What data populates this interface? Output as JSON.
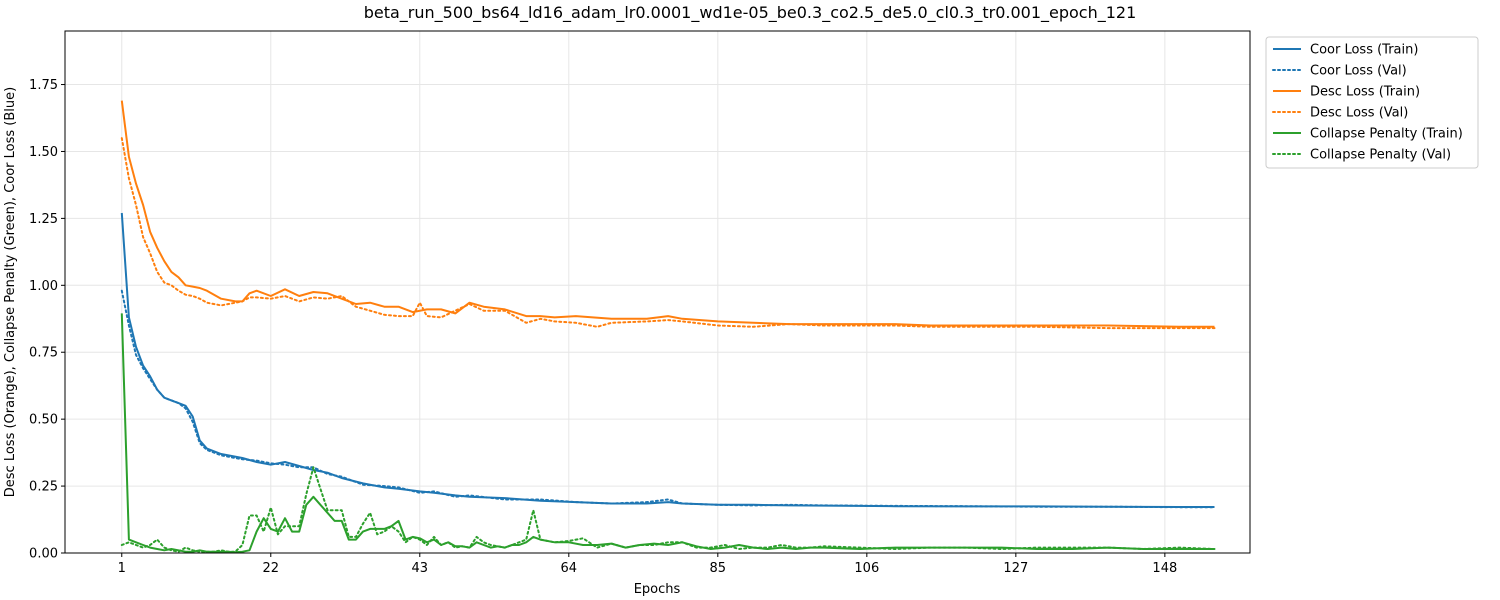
{
  "chart_data": {
    "type": "line",
    "title": "beta_run_500_bs64_ld16_adam_lr0.0001_wd1e-05_be0.3_co2.5_de5.0_cl0.3_tr0.001_epoch_121",
    "xlabel": "Epochs",
    "ylabel": "Desc Loss (Orange), Collapse Penalty (Green), Coor Loss (Blue)",
    "xlim": [
      -7,
      160
    ],
    "ylim": [
      0,
      1.95
    ],
    "x_ticks": [
      1,
      22,
      43,
      64,
      85,
      106,
      127,
      148
    ],
    "y_ticks": [
      0.0,
      0.25,
      0.5,
      0.75,
      1.0,
      1.25,
      1.5,
      1.75
    ],
    "y_tick_labels": [
      "0.00",
      "0.25",
      "0.50",
      "0.75",
      "1.00",
      "1.25",
      "1.50",
      "1.75"
    ],
    "grid": true,
    "legend_position": "outside-top-right",
    "series": [
      {
        "name": "Coor Loss (Train)",
        "color": "#1f77b4",
        "style": "solid",
        "x": [
          1,
          2,
          3,
          4,
          5,
          6,
          7,
          8,
          9,
          10,
          11,
          12,
          13,
          15,
          18,
          20,
          22,
          24,
          26,
          28,
          30,
          32,
          35,
          38,
          40,
          43,
          45,
          48,
          50,
          55,
          60,
          65,
          70,
          75,
          78,
          80,
          85,
          90,
          95,
          100,
          110,
          120,
          130,
          140,
          150,
          155
        ],
        "values": [
          1.27,
          0.88,
          0.77,
          0.7,
          0.66,
          0.61,
          0.58,
          0.57,
          0.56,
          0.55,
          0.51,
          0.42,
          0.39,
          0.37,
          0.355,
          0.34,
          0.33,
          0.34,
          0.325,
          0.31,
          0.3,
          0.28,
          0.26,
          0.245,
          0.24,
          0.23,
          0.225,
          0.215,
          0.21,
          0.205,
          0.195,
          0.19,
          0.185,
          0.185,
          0.19,
          0.185,
          0.18,
          0.18,
          0.178,
          0.177,
          0.175,
          0.174,
          0.174,
          0.173,
          0.172,
          0.172
        ]
      },
      {
        "name": "Coor Loss (Val)",
        "color": "#1f77b4",
        "style": "dotted",
        "x": [
          1,
          2,
          3,
          4,
          5,
          6,
          7,
          8,
          9,
          10,
          11,
          12,
          13,
          15,
          18,
          20,
          22,
          24,
          26,
          28,
          30,
          32,
          35,
          38,
          40,
          43,
          45,
          48,
          50,
          55,
          60,
          65,
          70,
          75,
          78,
          80,
          85,
          90,
          95,
          100,
          110,
          120,
          130,
          140,
          150,
          155
        ],
        "values": [
          0.98,
          0.85,
          0.74,
          0.69,
          0.65,
          0.61,
          0.58,
          0.57,
          0.56,
          0.54,
          0.49,
          0.41,
          0.385,
          0.365,
          0.35,
          0.345,
          0.335,
          0.33,
          0.32,
          0.32,
          0.295,
          0.285,
          0.255,
          0.25,
          0.245,
          0.225,
          0.23,
          0.21,
          0.215,
          0.2,
          0.2,
          0.19,
          0.185,
          0.19,
          0.2,
          0.185,
          0.18,
          0.178,
          0.18,
          0.178,
          0.176,
          0.175,
          0.173,
          0.173,
          0.171,
          0.171
        ]
      },
      {
        "name": "Desc Loss (Train)",
        "color": "#ff7f0e",
        "style": "solid",
        "x": [
          1,
          2,
          3,
          4,
          5,
          6,
          7,
          8,
          9,
          10,
          11,
          12,
          13,
          15,
          17,
          18,
          19,
          20,
          22,
          24,
          26,
          28,
          30,
          32,
          34,
          36,
          38,
          40,
          42,
          44,
          46,
          48,
          50,
          52,
          55,
          58,
          60,
          62,
          65,
          70,
          75,
          78,
          80,
          85,
          90,
          95,
          100,
          105,
          110,
          115,
          120,
          125,
          130,
          140,
          150,
          155
        ],
        "values": [
          1.69,
          1.48,
          1.38,
          1.3,
          1.2,
          1.14,
          1.09,
          1.05,
          1.03,
          1.0,
          0.995,
          0.99,
          0.98,
          0.95,
          0.94,
          0.94,
          0.97,
          0.98,
          0.96,
          0.985,
          0.96,
          0.975,
          0.97,
          0.95,
          0.93,
          0.935,
          0.92,
          0.92,
          0.9,
          0.91,
          0.91,
          0.895,
          0.935,
          0.92,
          0.91,
          0.885,
          0.885,
          0.88,
          0.885,
          0.875,
          0.875,
          0.885,
          0.875,
          0.865,
          0.86,
          0.855,
          0.855,
          0.855,
          0.855,
          0.85,
          0.85,
          0.85,
          0.85,
          0.85,
          0.845,
          0.845
        ]
      },
      {
        "name": "Desc Loss (Val)",
        "color": "#ff7f0e",
        "style": "dotted",
        "x": [
          1,
          2,
          3,
          4,
          5,
          6,
          7,
          8,
          9,
          10,
          11,
          12,
          13,
          15,
          17,
          18,
          19,
          20,
          22,
          24,
          26,
          28,
          30,
          32,
          34,
          36,
          38,
          40,
          42,
          43,
          44,
          46,
          48,
          50,
          52,
          55,
          58,
          60,
          62,
          65,
          68,
          70,
          75,
          78,
          80,
          85,
          90,
          95,
          100,
          105,
          110,
          115,
          120,
          125,
          130,
          140,
          150,
          155
        ],
        "values": [
          1.55,
          1.4,
          1.3,
          1.18,
          1.12,
          1.05,
          1.01,
          1.0,
          0.98,
          0.965,
          0.96,
          0.95,
          0.935,
          0.925,
          0.935,
          0.94,
          0.955,
          0.955,
          0.95,
          0.96,
          0.94,
          0.955,
          0.95,
          0.96,
          0.92,
          0.905,
          0.89,
          0.885,
          0.885,
          0.935,
          0.885,
          0.88,
          0.905,
          0.93,
          0.905,
          0.905,
          0.86,
          0.875,
          0.865,
          0.86,
          0.845,
          0.86,
          0.865,
          0.87,
          0.865,
          0.85,
          0.845,
          0.855,
          0.85,
          0.85,
          0.85,
          0.845,
          0.845,
          0.845,
          0.845,
          0.84,
          0.84,
          0.84
        ]
      },
      {
        "name": "Collapse Penalty (Train)",
        "color": "#2ca02c",
        "style": "solid",
        "x": [
          1,
          2,
          3,
          4,
          5,
          6,
          7,
          8,
          9,
          10,
          11,
          12,
          13,
          14,
          15,
          16,
          17,
          18,
          19,
          20,
          21,
          22,
          23,
          24,
          25,
          26,
          27,
          28,
          29,
          30,
          31,
          32,
          33,
          34,
          35,
          36,
          37,
          38,
          39,
          40,
          41,
          42,
          43,
          44,
          45,
          46,
          47,
          48,
          49,
          50,
          51,
          52,
          53,
          54,
          55,
          56,
          57,
          58,
          59,
          60,
          62,
          64,
          66,
          68,
          70,
          72,
          74,
          76,
          78,
          80,
          82,
          84,
          86,
          88,
          90,
          92,
          94,
          96,
          98,
          100,
          105,
          110,
          115,
          120,
          125,
          130,
          135,
          140,
          145,
          150,
          155
        ],
        "values": [
          0.895,
          0.05,
          0.04,
          0.03,
          0.02,
          0.015,
          0.01,
          0.015,
          0.01,
          0.005,
          0.005,
          0.01,
          0.005,
          0.005,
          0.005,
          0.005,
          0.003,
          0.005,
          0.01,
          0.08,
          0.13,
          0.09,
          0.08,
          0.13,
          0.08,
          0.08,
          0.18,
          0.21,
          0.18,
          0.15,
          0.12,
          0.12,
          0.05,
          0.05,
          0.08,
          0.09,
          0.09,
          0.09,
          0.1,
          0.12,
          0.05,
          0.06,
          0.055,
          0.04,
          0.05,
          0.03,
          0.04,
          0.025,
          0.025,
          0.02,
          0.04,
          0.03,
          0.02,
          0.025,
          0.02,
          0.03,
          0.03,
          0.04,
          0.06,
          0.05,
          0.04,
          0.04,
          0.03,
          0.03,
          0.035,
          0.02,
          0.03,
          0.035,
          0.03,
          0.04,
          0.025,
          0.015,
          0.02,
          0.03,
          0.02,
          0.015,
          0.02,
          0.015,
          0.02,
          0.02,
          0.015,
          0.02,
          0.02,
          0.02,
          0.02,
          0.015,
          0.015,
          0.02,
          0.015,
          0.015,
          0.015
        ]
      },
      {
        "name": "Collapse Penalty (Val)",
        "color": "#2ca02c",
        "style": "dotted",
        "x": [
          1,
          2,
          3,
          4,
          5,
          6,
          7,
          8,
          9,
          10,
          11,
          12,
          13,
          14,
          15,
          16,
          17,
          18,
          19,
          20,
          21,
          22,
          23,
          24,
          25,
          26,
          27,
          28,
          29,
          30,
          31,
          32,
          33,
          34,
          35,
          36,
          37,
          38,
          39,
          40,
          41,
          42,
          43,
          44,
          45,
          46,
          47,
          48,
          49,
          50,
          51,
          52,
          53,
          54,
          55,
          56,
          57,
          58,
          59,
          60,
          62,
          64,
          66,
          68,
          70,
          72,
          74,
          76,
          78,
          80,
          82,
          84,
          86,
          88,
          90,
          92,
          94,
          96,
          98,
          100,
          105,
          110,
          115,
          120,
          125,
          130,
          135,
          140,
          145,
          150,
          155
        ],
        "values": [
          0.03,
          0.04,
          0.03,
          0.02,
          0.03,
          0.05,
          0.02,
          0.01,
          0.005,
          0.02,
          0.01,
          0.005,
          0.005,
          0.005,
          0.01,
          0.005,
          0.005,
          0.03,
          0.14,
          0.14,
          0.08,
          0.17,
          0.07,
          0.1,
          0.1,
          0.1,
          0.22,
          0.32,
          0.24,
          0.16,
          0.16,
          0.16,
          0.06,
          0.06,
          0.11,
          0.15,
          0.07,
          0.08,
          0.1,
          0.08,
          0.04,
          0.06,
          0.05,
          0.03,
          0.06,
          0.03,
          0.04,
          0.02,
          0.025,
          0.02,
          0.06,
          0.04,
          0.03,
          0.025,
          0.02,
          0.03,
          0.04,
          0.05,
          0.16,
          0.05,
          0.04,
          0.045,
          0.055,
          0.02,
          0.035,
          0.02,
          0.03,
          0.03,
          0.04,
          0.04,
          0.02,
          0.02,
          0.03,
          0.015,
          0.02,
          0.02,
          0.03,
          0.02,
          0.02,
          0.025,
          0.02,
          0.015,
          0.02,
          0.02,
          0.015,
          0.02,
          0.02,
          0.02,
          0.015,
          0.02,
          0.015
        ]
      }
    ]
  }
}
